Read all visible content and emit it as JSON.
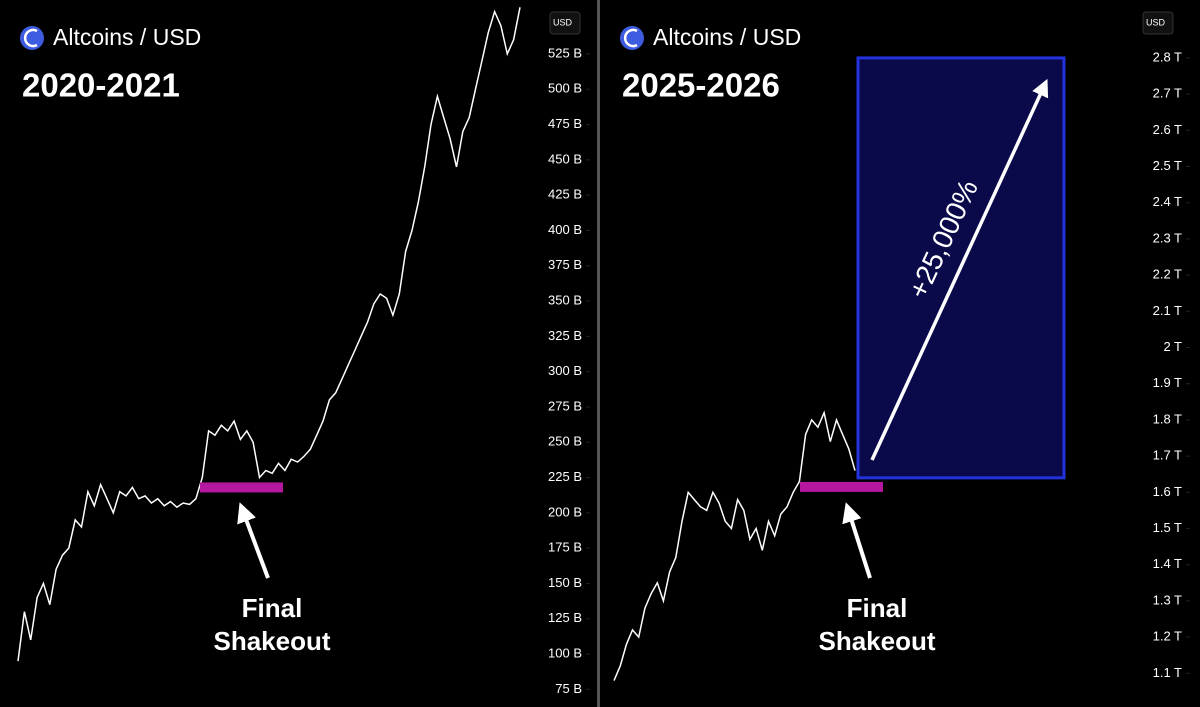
{
  "chart_data": [
    {
      "type": "line",
      "title": "Altcoins / USD",
      "subtitle": "2020-2021",
      "y_label": "USD",
      "categories": [
        null,
        null,
        null,
        null,
        null,
        null,
        null,
        null,
        null,
        null,
        null,
        null,
        null,
        null,
        null,
        null,
        null,
        null,
        null,
        null,
        null,
        null,
        null,
        null,
        null,
        null,
        null,
        null,
        null,
        null,
        null,
        null,
        null,
        null,
        null,
        null,
        null,
        null,
        null,
        null,
        null,
        null,
        null,
        null,
        null,
        null,
        null,
        null,
        null,
        null,
        null,
        null,
        null,
        null,
        null,
        null,
        null,
        null,
        null,
        null,
        null,
        null,
        null,
        null,
        null,
        null,
        null,
        null,
        null,
        null,
        null,
        null,
        null,
        null,
        null,
        null,
        null,
        null,
        null,
        null
      ],
      "values": [
        95,
        130,
        110,
        140,
        150,
        135,
        160,
        170,
        175,
        195,
        190,
        215,
        205,
        220,
        210,
        200,
        215,
        212,
        218,
        210,
        212,
        207,
        210,
        205,
        208,
        204,
        207,
        206,
        210,
        225,
        258,
        255,
        262,
        258,
        265,
        252,
        258,
        250,
        225,
        230,
        228,
        235,
        230,
        238,
        236,
        240,
        245,
        255,
        265,
        280,
        285,
        295,
        305,
        315,
        325,
        335,
        348,
        355,
        352,
        340,
        355,
        385,
        400,
        420,
        445,
        475,
        495,
        480,
        465,
        445,
        470,
        480,
        500,
        520,
        540,
        555,
        545,
        525,
        535,
        558
      ],
      "color": "#ffffff",
      "ylim": [
        62.5,
        563.2
      ],
      "yticks": [
        {
          "value": 75,
          "label": "75 B"
        },
        {
          "value": 100,
          "label": "100 B"
        },
        {
          "value": 125,
          "label": "125 B"
        },
        {
          "value": 150,
          "label": "150 B"
        },
        {
          "value": 175,
          "label": "175 B"
        },
        {
          "value": 200,
          "label": "200 B"
        },
        {
          "value": 225,
          "label": "225 B"
        },
        {
          "value": 250,
          "label": "250 B"
        },
        {
          "value": 275,
          "label": "275 B"
        },
        {
          "value": 300,
          "label": "300 B"
        },
        {
          "value": 325,
          "label": "325 B"
        },
        {
          "value": 350,
          "label": "350 B"
        },
        {
          "value": 375,
          "label": "375 B"
        },
        {
          "value": 400,
          "label": "400 B"
        },
        {
          "value": 425,
          "label": "425 B"
        },
        {
          "value": 450,
          "label": "450 B"
        },
        {
          "value": 475,
          "label": "475 B"
        },
        {
          "value": 500,
          "label": "500 B"
        },
        {
          "value": 525,
          "label": "525 B"
        }
      ],
      "annotation": {
        "text": "Final Shakeout",
        "level": 218,
        "color": "#b5179e"
      }
    },
    {
      "type": "line",
      "title": "Altcoins / USD",
      "subtitle": "2025-2026",
      "y_label": "USD",
      "categories": [
        null,
        null,
        null,
        null,
        null,
        null,
        null,
        null,
        null,
        null,
        null,
        null,
        null,
        null,
        null,
        null,
        null,
        null,
        null,
        null,
        null,
        null,
        null,
        null,
        null,
        null,
        null,
        null,
        null,
        null,
        null,
        null,
        null,
        null,
        null,
        null,
        null,
        null,
        null,
        null
      ],
      "values": [
        1.08,
        1.12,
        1.18,
        1.22,
        1.2,
        1.28,
        1.32,
        1.35,
        1.3,
        1.38,
        1.42,
        1.52,
        1.6,
        1.58,
        1.56,
        1.55,
        1.6,
        1.57,
        1.52,
        1.5,
        1.58,
        1.55,
        1.47,
        1.5,
        1.44,
        1.52,
        1.48,
        1.54,
        1.56,
        1.6,
        1.63,
        1.76,
        1.8,
        1.78,
        1.82,
        1.74,
        1.8,
        1.76,
        1.72,
        1.66
      ],
      "color": "#ffffff",
      "ylim": [
        1.007,
        2.96
      ],
      "yticks": [
        {
          "value": 1.1,
          "label": "1.1 T"
        },
        {
          "value": 1.2,
          "label": "1.2 T"
        },
        {
          "value": 1.3,
          "label": "1.3 T"
        },
        {
          "value": 1.4,
          "label": "1.4 T"
        },
        {
          "value": 1.5,
          "label": "1.5 T"
        },
        {
          "value": 1.6,
          "label": "1.6 T"
        },
        {
          "value": 1.7,
          "label": "1.7 T"
        },
        {
          "value": 1.8,
          "label": "1.8 T"
        },
        {
          "value": 1.9,
          "label": "1.9 T"
        },
        {
          "value": 2,
          "label": "2 T"
        },
        {
          "value": 2.1,
          "label": "2.1 T"
        },
        {
          "value": 2.2,
          "label": "2.2 T"
        },
        {
          "value": 2.3,
          "label": "2.3 T"
        },
        {
          "value": 2.4,
          "label": "2.4 T"
        },
        {
          "value": 2.5,
          "label": "2.5 T"
        },
        {
          "value": 2.6,
          "label": "2.6 T"
        },
        {
          "value": 2.7,
          "label": "2.7 T"
        },
        {
          "value": 2.8,
          "label": "2.8 T"
        }
      ],
      "annotation": {
        "text": "Final Shakeout",
        "level": 1.615,
        "color": "#b5179e"
      },
      "target": {
        "range": [
          1.64,
          2.8
        ],
        "text": "+25,000%",
        "color": "#0a0a4a",
        "border": "#2233dd"
      }
    }
  ]
}
